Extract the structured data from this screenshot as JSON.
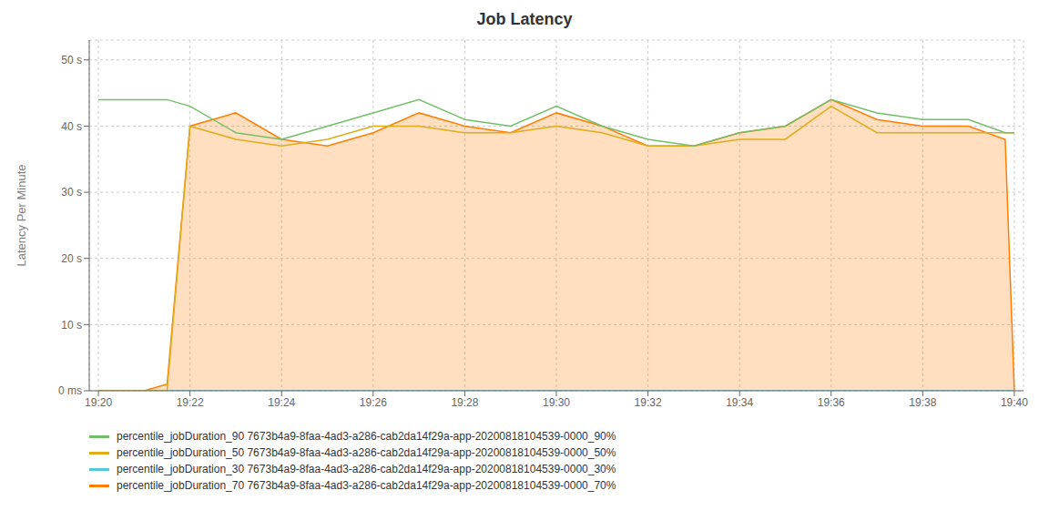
{
  "chart_data": {
    "type": "line",
    "title": "Job Latency",
    "ylabel": "Latency Per Minute",
    "x": [
      0,
      0.5,
      1.0,
      1.5,
      2,
      3,
      4,
      5,
      6,
      7,
      8,
      9,
      10,
      11,
      12,
      13,
      14,
      15,
      16,
      17,
      18,
      19,
      19.8,
      20
    ],
    "xlim": [
      -0.2,
      20.2
    ],
    "xticks": [
      {
        "value": 0,
        "label": "19:20"
      },
      {
        "value": 2,
        "label": "19:22"
      },
      {
        "value": 4,
        "label": "19:24"
      },
      {
        "value": 6,
        "label": "19:26"
      },
      {
        "value": 8,
        "label": "19:28"
      },
      {
        "value": 10,
        "label": "19:30"
      },
      {
        "value": 12,
        "label": "19:32"
      },
      {
        "value": 14,
        "label": "19:34"
      },
      {
        "value": 16,
        "label": "19:36"
      },
      {
        "value": 18,
        "label": "19:38"
      },
      {
        "value": 20,
        "label": "19:40"
      }
    ],
    "ylim": [
      0,
      53
    ],
    "yticks": [
      {
        "value": 0,
        "label": "0 ms"
      },
      {
        "value": 10,
        "label": "10 s"
      },
      {
        "value": 20,
        "label": "20 s"
      },
      {
        "value": 30,
        "label": "30 s"
      },
      {
        "value": 40,
        "label": "40 s"
      },
      {
        "value": 50,
        "label": "50 s"
      }
    ],
    "grid": true,
    "legend": "bottom",
    "series": [
      {
        "name": "percentile_jobDuration_90 7673b4a9-8faa-4ad3-a286-cab2da14f29a-app-20200818104539-0000_90%",
        "color": "#73bf69",
        "values": [
          44,
          44,
          44,
          44,
          43,
          39,
          38,
          40,
          42,
          44,
          41,
          40,
          43,
          40,
          38,
          37,
          39,
          40,
          44,
          42,
          41,
          41,
          39,
          39
        ]
      },
      {
        "name": "percentile_jobDuration_50 7673b4a9-8faa-4ad3-a286-cab2da14f29a-app-20200818104539-0000_50%",
        "color": "#e0ac1a",
        "values": [
          0,
          0,
          0,
          0,
          40,
          38,
          37,
          38,
          40,
          40,
          39,
          39,
          40,
          39,
          37,
          37,
          38,
          38,
          43,
          39,
          39,
          39,
          39,
          39
        ]
      },
      {
        "name": "percentile_jobDuration_30 7673b4a9-8faa-4ad3-a286-cab2da14f29a-app-20200818104539-0000_30%",
        "color": "#56c8d8",
        "values": [
          0,
          0,
          0,
          0,
          0,
          0,
          0,
          0,
          0,
          0,
          0,
          0,
          0,
          0,
          0,
          0,
          0,
          0,
          0,
          0,
          0,
          0,
          0,
          0
        ]
      },
      {
        "name": "percentile_jobDuration_70 7673b4a9-8faa-4ad3-a286-cab2da14f29a-app-20200818104539-0000_70%",
        "color": "#ff7e00",
        "type": "area",
        "values": [
          0,
          0,
          0,
          1,
          40,
          42,
          38,
          37,
          39,
          42,
          40,
          39,
          42,
          40,
          37,
          37,
          39,
          40,
          44,
          41,
          40,
          40,
          38,
          0
        ]
      }
    ]
  }
}
